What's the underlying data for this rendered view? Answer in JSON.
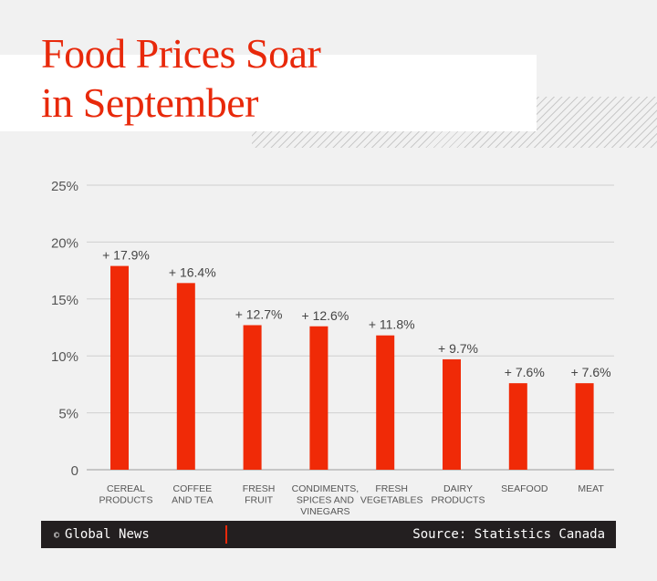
{
  "title": "Food Prices Soar in September",
  "title_lines": [
    "Food Prices Soar",
    "in September"
  ],
  "footer": {
    "copyright_symbol": "©",
    "brand": "Global News",
    "source": "Source: Statistics Canada"
  },
  "colors": {
    "bar": "#f02a07",
    "title": "#e8290b",
    "footer_bg": "#231f20",
    "background": "#f1f1f1"
  },
  "chart_data": {
    "type": "bar",
    "categories": [
      [
        "CEREAL",
        "PRODUCTS"
      ],
      [
        "COFFEE",
        "AND TEA"
      ],
      [
        "FRESH",
        "FRUIT"
      ],
      [
        "CONDIMENTS,",
        "SPICES AND",
        "VINEGARS"
      ],
      [
        "FRESH",
        "VEGETABLES"
      ],
      [
        "DAIRY",
        "PRODUCTS"
      ],
      [
        "SEAFOOD"
      ],
      [
        "MEAT"
      ]
    ],
    "values": [
      17.9,
      16.4,
      12.7,
      12.6,
      11.8,
      9.7,
      7.6,
      7.6
    ],
    "data_labels": [
      "+ 17.9%",
      "+ 16.4%",
      "+ 12.7%",
      "+ 12.6%",
      "+ 11.8%",
      "+ 9.7%",
      "+ 7.6%",
      "+ 7.6%"
    ],
    "yticks": [
      "0",
      "5%",
      "10%",
      "15%",
      "20%",
      "25%"
    ],
    "ylim": [
      0,
      25
    ],
    "grid": true,
    "xlabel": "",
    "ylabel": ""
  }
}
